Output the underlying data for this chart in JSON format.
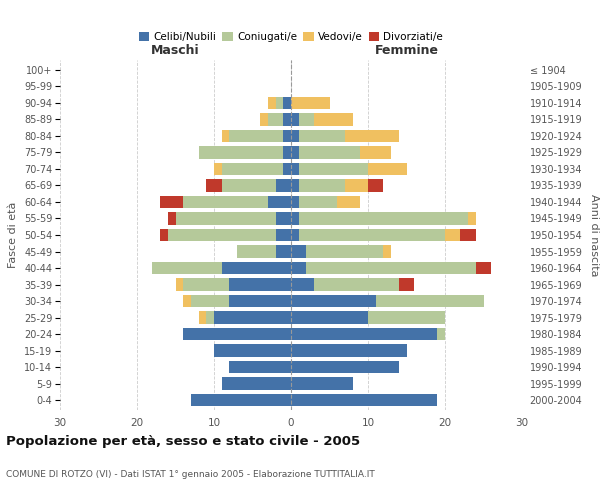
{
  "age_groups": [
    "0-4",
    "5-9",
    "10-14",
    "15-19",
    "20-24",
    "25-29",
    "30-34",
    "35-39",
    "40-44",
    "45-49",
    "50-54",
    "55-59",
    "60-64",
    "65-69",
    "70-74",
    "75-79",
    "80-84",
    "85-89",
    "90-94",
    "95-99",
    "100+"
  ],
  "birth_years": [
    "2000-2004",
    "1995-1999",
    "1990-1994",
    "1985-1989",
    "1980-1984",
    "1975-1979",
    "1970-1974",
    "1965-1969",
    "1960-1964",
    "1955-1959",
    "1950-1954",
    "1945-1949",
    "1940-1944",
    "1935-1939",
    "1930-1934",
    "1925-1929",
    "1920-1924",
    "1915-1919",
    "1910-1914",
    "1905-1909",
    "≤ 1904"
  ],
  "maschi": {
    "celibe": [
      13,
      9,
      8,
      10,
      14,
      10,
      8,
      8,
      9,
      2,
      2,
      2,
      3,
      2,
      1,
      1,
      1,
      1,
      1,
      0,
      0
    ],
    "coniugato": [
      0,
      0,
      0,
      0,
      0,
      1,
      5,
      6,
      9,
      5,
      14,
      13,
      11,
      7,
      8,
      11,
      7,
      2,
      1,
      0,
      0
    ],
    "vedovo": [
      0,
      0,
      0,
      0,
      0,
      1,
      1,
      1,
      0,
      0,
      0,
      0,
      0,
      0,
      1,
      0,
      1,
      1,
      1,
      0,
      0
    ],
    "divorziato": [
      0,
      0,
      0,
      0,
      0,
      0,
      0,
      0,
      0,
      0,
      1,
      1,
      3,
      2,
      0,
      0,
      0,
      0,
      0,
      0,
      0
    ]
  },
  "femmine": {
    "nubile": [
      19,
      8,
      14,
      15,
      19,
      10,
      11,
      3,
      2,
      2,
      1,
      1,
      1,
      1,
      1,
      1,
      1,
      1,
      0,
      0,
      0
    ],
    "coniugata": [
      0,
      0,
      0,
      0,
      1,
      10,
      14,
      11,
      22,
      10,
      19,
      22,
      5,
      6,
      9,
      8,
      6,
      2,
      0,
      0,
      0
    ],
    "vedova": [
      0,
      0,
      0,
      0,
      0,
      0,
      0,
      0,
      0,
      1,
      2,
      1,
      3,
      3,
      5,
      4,
      7,
      5,
      5,
      0,
      0
    ],
    "divorziata": [
      0,
      0,
      0,
      0,
      0,
      0,
      0,
      2,
      2,
      0,
      2,
      0,
      0,
      2,
      0,
      0,
      0,
      0,
      0,
      0,
      0
    ]
  },
  "colors": {
    "celibe": "#4472a8",
    "coniugato": "#b5c99a",
    "vedovo": "#f0c060",
    "divorziato": "#c0392b"
  },
  "xlim": 30,
  "title": "Popolazione per età, sesso e stato civile - 2005",
  "subtitle": "COMUNE DI ROTZO (VI) - Dati ISTAT 1° gennaio 2005 - Elaborazione TUTTITALIA.IT",
  "ylabel_left": "Fasce di età",
  "ylabel_right": "Anni di nascita",
  "xlabel_left": "Maschi",
  "xlabel_right": "Femmine",
  "background_color": "#ffffff",
  "grid_color": "#cccccc"
}
